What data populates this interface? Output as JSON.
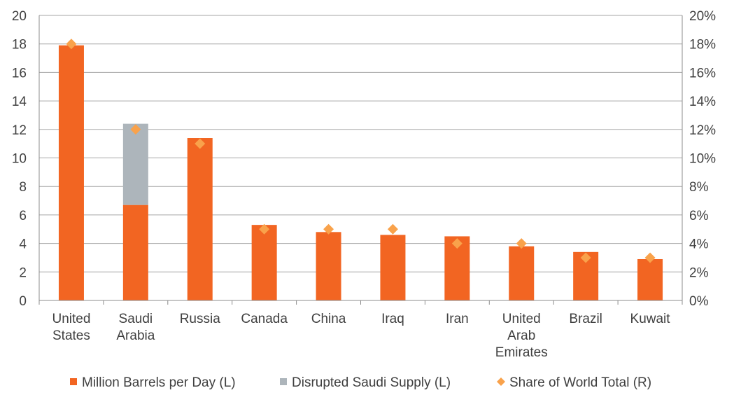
{
  "chart_data": {
    "type": "bar",
    "categories": [
      [
        "United",
        "States"
      ],
      [
        "Saudi",
        "Arabia"
      ],
      [
        "Russia"
      ],
      [
        "Canada"
      ],
      [
        "China"
      ],
      [
        "Iraq"
      ],
      [
        "Iran"
      ],
      [
        "United",
        "Arab",
        "Emirates"
      ],
      [
        "Brazil"
      ],
      [
        "Kuwait"
      ]
    ],
    "series": [
      {
        "name": "Million Barrels per Day (L)",
        "kind": "bar",
        "axis": "left",
        "color": "#f26522",
        "values": [
          17.9,
          6.7,
          11.4,
          5.3,
          4.8,
          4.6,
          4.5,
          3.8,
          3.4,
          2.9
        ]
      },
      {
        "name": "Disrupted Saudi Supply (L)",
        "kind": "bar-stacked",
        "axis": "left",
        "color": "#adb5bb",
        "values": [
          0,
          5.7,
          0,
          0,
          0,
          0,
          0,
          0,
          0,
          0
        ]
      },
      {
        "name": "Share of World Total (R)",
        "kind": "marker-diamond",
        "axis": "right",
        "color": "#f9a24b",
        "values": [
          18,
          12,
          11,
          5,
          5,
          5,
          4,
          4,
          3,
          3
        ]
      }
    ],
    "y_left": {
      "ylim": [
        0,
        20
      ],
      "ticks": [
        "0",
        "2",
        "4",
        "6",
        "8",
        "10",
        "12",
        "14",
        "16",
        "18",
        "20"
      ]
    },
    "y_right": {
      "ylim": [
        0,
        20
      ],
      "ticks": [
        "0%",
        "2%",
        "4%",
        "6%",
        "8%",
        "10%",
        "12%",
        "14%",
        "16%",
        "18%",
        "20%"
      ]
    },
    "grid": true,
    "legend_position": "bottom"
  }
}
